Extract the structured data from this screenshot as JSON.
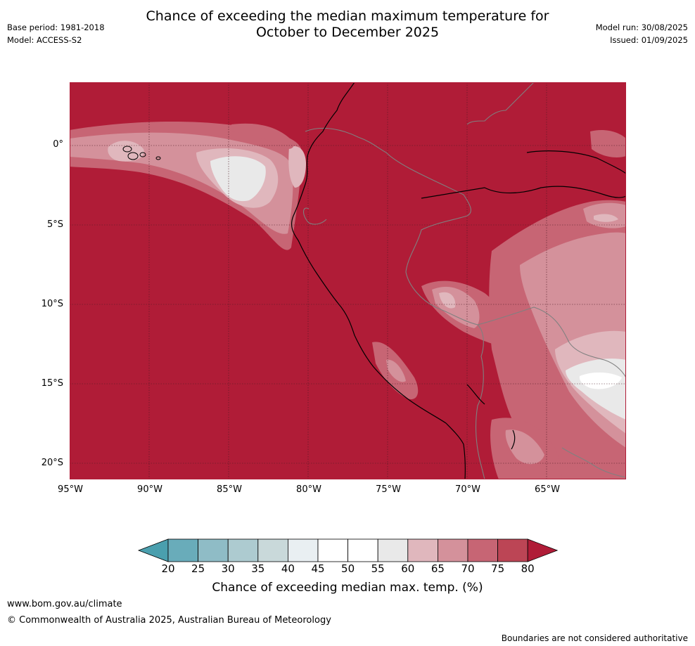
{
  "title": {
    "line1": "Chance of exceeding the median maximum temperature for",
    "line2": "October to December 2025"
  },
  "meta_left": {
    "base_period": "Base period: 1981-2018",
    "model": "Model: ACCESS-S2"
  },
  "meta_right": {
    "model_run": "Model run: 30/08/2025",
    "issued": "Issued: 01/09/2025"
  },
  "map": {
    "lat_labels": [
      "0°",
      "5°S",
      "10°S",
      "15°S",
      "20°S"
    ],
    "lon_labels": [
      "95°W",
      "90°W",
      "85°W",
      "80°W",
      "75°W",
      "70°W",
      "65°W"
    ],
    "background_color": "#b01c37",
    "coastline_color": "#000000",
    "border_color": "#808080"
  },
  "colorbar": {
    "title": "Chance of exceeding median max. temp. (%)",
    "ticks": [
      "20",
      "25",
      "30",
      "35",
      "40",
      "45",
      "50",
      "55",
      "60",
      "65",
      "70",
      "75",
      "80"
    ],
    "colors": [
      "#4a9fae",
      "#69acba",
      "#8fbcc6",
      "#adcbd0",
      "#c9d9da",
      "#e9eff2",
      "#ffffff",
      "#ffffff",
      "#e9e9e9",
      "#e0b7bd",
      "#d4919b",
      "#c76574",
      "#bc4555",
      "#b01c37"
    ]
  },
  "footer": {
    "url": "www.bom.gov.au/climate",
    "copyright": "© Commonwealth of Australia 2025, Australian Bureau of Meteorology",
    "disclaimer": "Boundaries are not considered authoritative"
  }
}
